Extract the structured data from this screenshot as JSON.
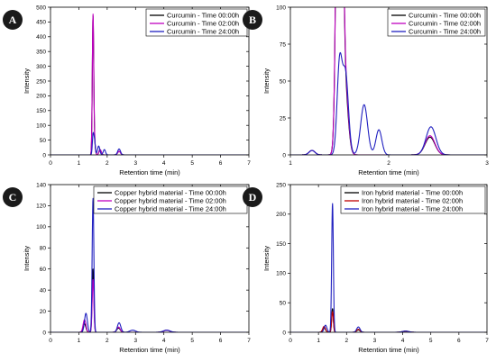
{
  "chart_data": [
    {
      "type": "line",
      "panel_label": "A",
      "xlabel": "Retention time (min)",
      "ylabel": "Intensity",
      "xlim": [
        0,
        7
      ],
      "ylim": [
        0,
        500
      ],
      "xticks": [
        0,
        1,
        2,
        3,
        4,
        5,
        6,
        7
      ],
      "yticks": [
        0,
        50,
        100,
        150,
        200,
        250,
        300,
        350,
        400,
        450,
        500
      ],
      "legend_position": "top-right",
      "series": [
        {
          "name": "Curcumin - Time 00:00h",
          "color": "#000000",
          "peaks": [
            {
              "t": 1.5,
              "h": 460,
              "w": 0.025
            },
            {
              "t": 1.55,
              "h": 40,
              "w": 0.03
            },
            {
              "t": 1.75,
              "h": 18,
              "w": 0.04
            },
            {
              "t": 2.42,
              "h": 12,
              "w": 0.05
            }
          ]
        },
        {
          "name": "Curcumin - Time 02:00h",
          "color": "#c000c0",
          "peaks": [
            {
              "t": 1.5,
              "h": 465,
              "w": 0.025
            },
            {
              "t": 1.55,
              "h": 45,
              "w": 0.03
            },
            {
              "t": 1.75,
              "h": 18,
              "w": 0.04
            },
            {
              "t": 2.42,
              "h": 12,
              "w": 0.05
            }
          ]
        },
        {
          "name": "Curcumin - Time 24:00h",
          "color": "#2020c0",
          "peaks": [
            {
              "t": 1.5,
              "h": 60,
              "w": 0.025
            },
            {
              "t": 1.55,
              "h": 50,
              "w": 0.03
            },
            {
              "t": 1.7,
              "h": 30,
              "w": 0.04
            },
            {
              "t": 1.9,
              "h": 18,
              "w": 0.04
            },
            {
              "t": 2.42,
              "h": 20,
              "w": 0.05
            }
          ]
        }
      ]
    },
    {
      "type": "line",
      "panel_label": "B",
      "xlabel": "Retention time (min)",
      "ylabel": "Intensity",
      "xlim": [
        1,
        3
      ],
      "ylim": [
        0,
        100
      ],
      "xticks": [
        1,
        2,
        3
      ],
      "yticks": [
        0,
        25,
        50,
        75,
        100
      ],
      "legend_position": "top-right",
      "series": [
        {
          "name": "Curcumin - Time 00:00h",
          "color": "#000000",
          "peaks": [
            {
              "t": 1.22,
              "h": 3,
              "w": 0.03
            },
            {
              "t": 1.5,
              "h": 460,
              "w": 0.025
            },
            {
              "t": 1.56,
              "h": 40,
              "w": 0.03
            },
            {
              "t": 2.42,
              "h": 12,
              "w": 0.05
            }
          ]
        },
        {
          "name": "Curcumin - Time 02:00h",
          "color": "#c000c0",
          "peaks": [
            {
              "t": 1.22,
              "h": 3,
              "w": 0.03
            },
            {
              "t": 1.5,
              "h": 465,
              "w": 0.025
            },
            {
              "t": 1.56,
              "h": 45,
              "w": 0.03
            },
            {
              "t": 2.42,
              "h": 13,
              "w": 0.05
            }
          ]
        },
        {
          "name": "Curcumin - Time 24:00h",
          "color": "#2020c0",
          "peaks": [
            {
              "t": 1.22,
              "h": 3,
              "w": 0.03
            },
            {
              "t": 1.5,
              "h": 60,
              "w": 0.025
            },
            {
              "t": 1.56,
              "h": 55,
              "w": 0.03
            },
            {
              "t": 1.75,
              "h": 34,
              "w": 0.035
            },
            {
              "t": 1.9,
              "h": 17,
              "w": 0.03
            },
            {
              "t": 2.43,
              "h": 19,
              "w": 0.05
            }
          ]
        }
      ]
    },
    {
      "type": "line",
      "panel_label": "C",
      "xlabel": "Retention time (min)",
      "ylabel": "Intensity",
      "xlim": [
        0,
        7
      ],
      "ylim": [
        0,
        140
      ],
      "xticks": [
        0,
        1,
        2,
        3,
        4,
        5,
        6,
        7
      ],
      "yticks": [
        0,
        20,
        40,
        60,
        80,
        100,
        120,
        140
      ],
      "legend_position": "top-right",
      "series": [
        {
          "name": "Copper hybrid material - Time 00:00h",
          "color": "#000000",
          "peaks": [
            {
              "t": 1.2,
              "h": 8,
              "w": 0.05
            },
            {
              "t": 1.5,
              "h": 60,
              "w": 0.03
            },
            {
              "t": 2.4,
              "h": 4,
              "w": 0.06
            },
            {
              "t": 4.1,
              "h": 2,
              "w": 0.1
            }
          ]
        },
        {
          "name": "Copper hybrid material - Time 02:00h",
          "color": "#c000c0",
          "peaks": [
            {
              "t": 1.2,
              "h": 12,
              "w": 0.05
            },
            {
              "t": 1.5,
              "h": 50,
              "w": 0.03
            },
            {
              "t": 2.4,
              "h": 5,
              "w": 0.06
            },
            {
              "t": 4.1,
              "h": 2,
              "w": 0.1
            }
          ]
        },
        {
          "name": "Copper hybrid material - Time 24:00h",
          "color": "#2020c0",
          "peaks": [
            {
              "t": 1.25,
              "h": 18,
              "w": 0.05
            },
            {
              "t": 1.5,
              "h": 127,
              "w": 0.03
            },
            {
              "t": 2.42,
              "h": 9,
              "w": 0.06
            },
            {
              "t": 2.9,
              "h": 2,
              "w": 0.1
            },
            {
              "t": 4.1,
              "h": 2,
              "w": 0.12
            }
          ]
        }
      ]
    },
    {
      "type": "line",
      "panel_label": "D",
      "xlabel": "Retention time (min)",
      "ylabel": "Intensity",
      "xlim": [
        0,
        7
      ],
      "ylim": [
        0,
        250
      ],
      "xticks": [
        0,
        1,
        2,
        3,
        4,
        5,
        6,
        7
      ],
      "yticks": [
        0,
        50,
        100,
        150,
        200,
        250
      ],
      "legend_position": "top-right",
      "series": [
        {
          "name": "Iron hybrid material - Time 00:00h",
          "color": "#000000",
          "peaks": [
            {
              "t": 1.2,
              "h": 8,
              "w": 0.05
            },
            {
              "t": 1.5,
              "h": 40,
              "w": 0.03
            },
            {
              "t": 2.42,
              "h": 4,
              "w": 0.06
            },
            {
              "t": 4.1,
              "h": 2,
              "w": 0.1
            }
          ]
        },
        {
          "name": "Iron hybrid material - Time 02:00h",
          "color": "#c00000",
          "peaks": [
            {
              "t": 1.2,
              "h": 10,
              "w": 0.05
            },
            {
              "t": 1.5,
              "h": 35,
              "w": 0.03
            },
            {
              "t": 2.42,
              "h": 5,
              "w": 0.06
            },
            {
              "t": 4.1,
              "h": 2,
              "w": 0.1
            }
          ]
        },
        {
          "name": "Iron hybrid material - Time 24:00h",
          "color": "#2020c0",
          "peaks": [
            {
              "t": 1.25,
              "h": 12,
              "w": 0.05
            },
            {
              "t": 1.5,
              "h": 218,
              "w": 0.03
            },
            {
              "t": 2.42,
              "h": 9,
              "w": 0.06
            },
            {
              "t": 4.1,
              "h": 2,
              "w": 0.12
            }
          ]
        }
      ]
    }
  ],
  "badge_color": "#1a1a1a"
}
